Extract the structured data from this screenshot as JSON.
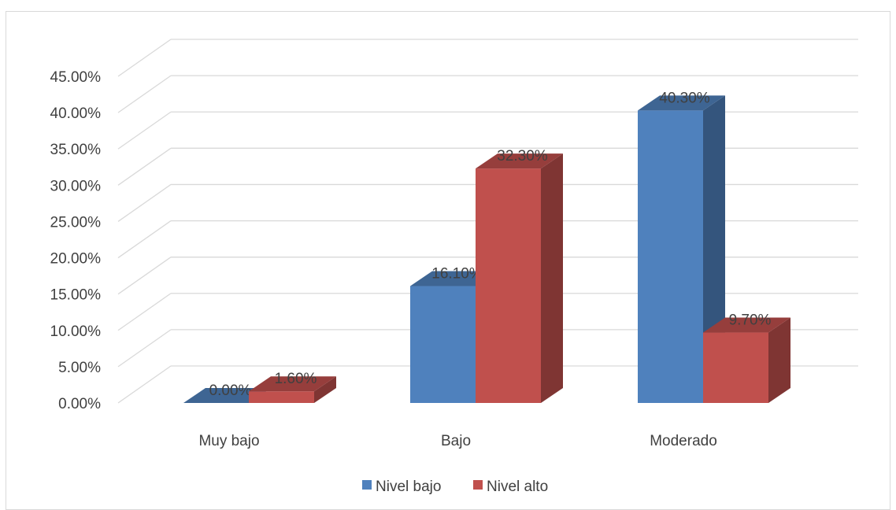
{
  "chart_data": {
    "type": "bar",
    "style": "3d-clustered-column",
    "categories": [
      "Muy bajo",
      "Bajo",
      "Moderado"
    ],
    "series": [
      {
        "name": "Nivel bajo",
        "values": [
          0.0,
          16.1,
          40.3
        ],
        "labels": [
          "0.00%",
          "16.10%",
          "40.30%"
        ],
        "color": "#4f81bd"
      },
      {
        "name": "Nivel alto",
        "values": [
          1.6,
          32.3,
          9.7
        ],
        "labels": [
          "1.60%",
          "32.30%",
          "9.70%"
        ],
        "color": "#c0504d"
      }
    ],
    "yticks": [
      "0.00%",
      "5.00%",
      "10.00%",
      "15.00%",
      "20.00%",
      "25.00%",
      "30.00%",
      "35.00%",
      "40.00%",
      "45.00%"
    ],
    "ylim": [
      0,
      45
    ],
    "grid": true,
    "legend_position": "bottom",
    "title": "",
    "xlabel": "",
    "ylabel": ""
  }
}
